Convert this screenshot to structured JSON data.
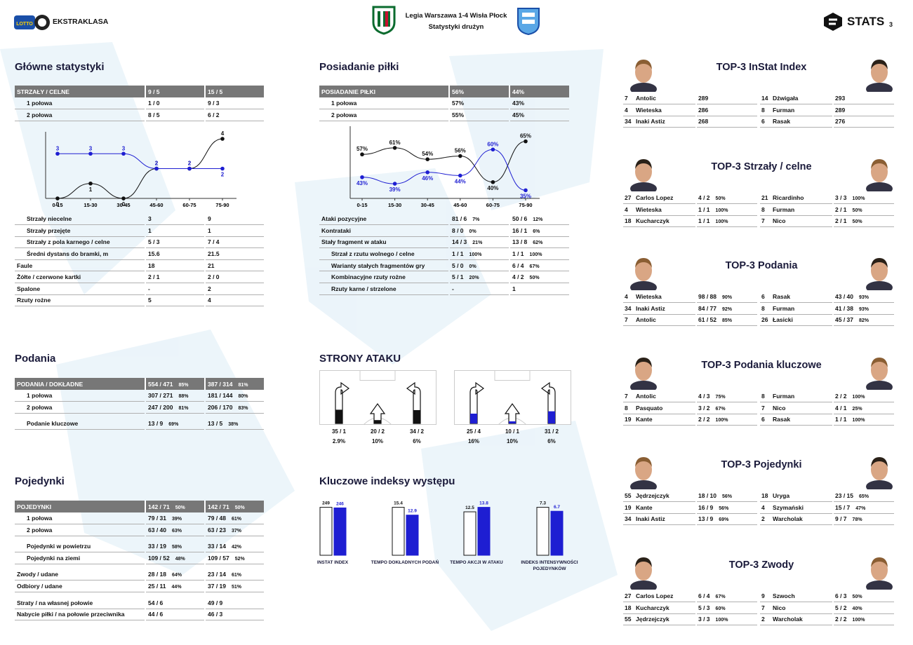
{
  "header": {
    "league": "EKSTRAKLASA",
    "league_brand": "LOTTO",
    "match_title": "Legia Warszawa 1-4 Wisła Płock",
    "match_subtitle": "Statystyki drużyn",
    "stats_brand": "STATS",
    "page_number": "3"
  },
  "colors": {
    "team_a": "#111111",
    "team_b": "#1e1ed2",
    "header_bg": "#777777"
  },
  "main_stats": {
    "title": "Główne statystyki",
    "header": [
      "STRZAŁY / CELNE",
      "9 / 5",
      "15 / 5"
    ],
    "rows": [
      [
        "1 połowa",
        "1 / 0",
        "9 / 3"
      ],
      [
        "2 połowa",
        "8 / 5",
        "6 / 2"
      ]
    ],
    "rows2": [
      [
        "Strzały niecelne",
        "3",
        "9",
        1
      ],
      [
        "Strzały przejęte",
        "1",
        "1",
        1
      ],
      [
        "Strzały z pola karnego / celne",
        "5 / 3",
        "7 / 4",
        1
      ],
      [
        "Średni dystans do bramki, m",
        "15.6",
        "21.5",
        1
      ],
      [
        "Faule",
        "18",
        "21",
        0
      ],
      [
        "Żółte / czerwone kartki",
        "2 / 1",
        "2 / 0",
        0
      ],
      [
        "Spalone",
        "-",
        "2",
        0
      ],
      [
        "Rzuty rożne",
        "5",
        "4",
        0
      ]
    ]
  },
  "chart_data": [
    {
      "type": "line",
      "categories": [
        "0-15",
        "15-30",
        "30-45",
        "45-60",
        "60-75",
        "75-90"
      ],
      "series": [
        {
          "values": [
            0,
            1,
            0,
            2,
            2,
            4
          ],
          "color": "#111111"
        },
        {
          "values": [
            3,
            3,
            3,
            2,
            2,
            2
          ],
          "color": "#1e1ed2"
        }
      ],
      "ylim": [
        0,
        4
      ]
    },
    {
      "type": "line",
      "categories": [
        "0-15",
        "15-30",
        "30-45",
        "45-60",
        "60-75",
        "75-90"
      ],
      "series": [
        {
          "values": [
            57,
            61,
            54,
            56,
            40,
            65
          ],
          "color": "#111111",
          "labels": [
            "57%",
            "61%",
            "54%",
            "56%",
            "40%",
            "65%"
          ]
        },
        {
          "values": [
            43,
            39,
            46,
            44,
            60,
            35
          ],
          "color": "#1e1ed2",
          "labels": [
            "43%",
            "39%",
            "46%",
            "44%",
            "60%",
            "35%"
          ]
        }
      ],
      "ylim": [
        30,
        70
      ]
    },
    {
      "type": "bar",
      "categories": [
        "INSTAT INDEX",
        "TEMPO DOKŁADNYCH PODAŃ",
        "TEMPO AKCJI W ATAKU",
        "INDEKS INTENSYWNOŚCI POJEDYNKÓW"
      ],
      "series": [
        {
          "values": [
            249,
            15.4,
            12.5,
            7.3
          ],
          "labels": [
            "249",
            "15.4",
            "12.5",
            "7.3"
          ]
        },
        {
          "values": [
            246,
            12.9,
            13.8,
            6.7
          ],
          "labels": [
            "246",
            "12.9",
            "13.8",
            "6.7"
          ]
        }
      ]
    }
  ],
  "possession": {
    "title": "Posiadanie piłki",
    "header": [
      "POSIADANIE PIŁKI",
      "56%",
      "44%"
    ],
    "rows": [
      [
        "1 połowa",
        "57%",
        "43%"
      ],
      [
        "2 połowa",
        "55%",
        "45%"
      ]
    ],
    "rows2": [
      [
        "Ataki pozycyjne",
        "81 / 6",
        "7%",
        "50 / 6",
        "12%",
        0
      ],
      [
        "Kontrataki",
        "8 / 0",
        "0%",
        "16 / 1",
        "6%",
        0
      ],
      [
        "Stały fragment w ataku",
        "14 / 3",
        "21%",
        "13 / 8",
        "62%",
        0
      ],
      [
        "Strzał z rzutu wolnego / celne",
        "1 / 1",
        "100%",
        "1 / 1",
        "100%",
        1
      ],
      [
        "Warianty stałych fragmentów gry",
        "5 / 0",
        "0%",
        "6 / 4",
        "67%",
        1
      ],
      [
        "Kombinacyjne rzuty rożne",
        "5 / 1",
        "20%",
        "4 / 2",
        "50%",
        1
      ],
      [
        "Rzuty karne / strzelone",
        "-",
        "",
        "1",
        "",
        1
      ]
    ]
  },
  "passes": {
    "title": "Podania",
    "header": [
      "PODANIA / DOKŁADNE",
      "554 / 471",
      "85%",
      "387 / 314",
      "81%"
    ],
    "rows": [
      [
        "1 połowa",
        "307 / 271",
        "88%",
        "181 / 144",
        "80%"
      ],
      [
        "2 połowa",
        "247 / 200",
        "81%",
        "206 / 170",
        "83%"
      ]
    ],
    "key": [
      "Podanie kluczowe",
      "13 / 9",
      "69%",
      "13 / 5",
      "38%"
    ]
  },
  "attack_sides": {
    "title": "STRONY ATAKU",
    "team_a": [
      [
        "35 / 1",
        "2.9%"
      ],
      [
        "20 / 2",
        "10%"
      ],
      [
        "34 / 2",
        "6%"
      ]
    ],
    "team_b": [
      [
        "25 / 4",
        "16%"
      ],
      [
        "10 / 1",
        "10%"
      ],
      [
        "31 / 2",
        "6%"
      ]
    ],
    "team_a_fill": [
      0.35,
      0.2,
      0.34
    ],
    "team_b_fill": [
      0.25,
      0.1,
      0.31
    ]
  },
  "duels": {
    "title": "Pojedynki",
    "header": [
      "POJEDYNKI",
      "142 / 71",
      "50%",
      "142 / 71",
      "50%"
    ],
    "rows": [
      [
        "1 połowa",
        "79 / 31",
        "39%",
        "79 / 48",
        "61%",
        1,
        0
      ],
      [
        "2 połowa",
        "63 / 40",
        "63%",
        "63 / 23",
        "37%",
        1,
        0
      ],
      [
        "Pojedynki w powietrzu",
        "33 / 19",
        "58%",
        "33 / 14",
        "42%",
        2,
        1
      ],
      [
        "Pojedynki na ziemi",
        "109 / 52",
        "48%",
        "109 / 57",
        "52%",
        2,
        0
      ],
      [
        "Zwody / udane",
        "28 / 18",
        "64%",
        "23 / 14",
        "61%",
        0,
        1
      ],
      [
        "Odbiory / udane",
        "25 / 11",
        "44%",
        "37 / 19",
        "51%",
        0,
        0
      ],
      [
        "Straty / na własnej połowie",
        "54 / 6",
        "",
        "49 / 9",
        "",
        0,
        1
      ],
      [
        "Nabycie piłki / na połowie przeciwnika",
        "44 / 6",
        "",
        "46 / 3",
        "",
        0,
        0
      ]
    ]
  },
  "key_indexes": {
    "title": "Kluczowe indeksy występu"
  },
  "tops": [
    {
      "title": "TOP-3 InStat Index",
      "left": [
        [
          "7",
          "Antolic",
          "289",
          ""
        ],
        [
          "4",
          "Wieteska",
          "286",
          ""
        ],
        [
          "34",
          "Inaki Astiz",
          "268",
          ""
        ]
      ],
      "right": [
        [
          "14",
          "Dźwigała",
          "293",
          ""
        ],
        [
          "8",
          "Furman",
          "289",
          ""
        ],
        [
          "6",
          "Rasak",
          "276",
          ""
        ]
      ]
    },
    {
      "title": "TOP-3 Strzały / celne",
      "left": [
        [
          "27",
          "Carlos Lopez",
          "4 / 2",
          "50%"
        ],
        [
          "4",
          "Wieteska",
          "1 / 1",
          "100%"
        ],
        [
          "18",
          "Kucharczyk",
          "1 / 1",
          "100%"
        ]
      ],
      "right": [
        [
          "21",
          "Ricardinho",
          "3 / 3",
          "100%"
        ],
        [
          "8",
          "Furman",
          "2 / 1",
          "50%"
        ],
        [
          "7",
          "Nico",
          "2 / 1",
          "50%"
        ]
      ]
    },
    {
      "title": "TOP-3 Podania",
      "left": [
        [
          "4",
          "Wieteska",
          "98 / 88",
          "90%"
        ],
        [
          "34",
          "Inaki Astiz",
          "84 / 77",
          "92%"
        ],
        [
          "7",
          "Antolic",
          "61 / 52",
          "85%"
        ]
      ],
      "right": [
        [
          "6",
          "Rasak",
          "43 / 40",
          "93%"
        ],
        [
          "8",
          "Furman",
          "41 / 38",
          "93%"
        ],
        [
          "26",
          "Łasicki",
          "45 / 37",
          "82%"
        ]
      ]
    },
    {
      "title": "TOP-3 Podania kluczowe",
      "left": [
        [
          "7",
          "Antolic",
          "4 / 3",
          "75%"
        ],
        [
          "8",
          "Pasquato",
          "3 / 2",
          "67%"
        ],
        [
          "19",
          "Kante",
          "2 / 2",
          "100%"
        ]
      ],
      "right": [
        [
          "8",
          "Furman",
          "2 / 2",
          "100%"
        ],
        [
          "7",
          "Nico",
          "4 / 1",
          "25%"
        ],
        [
          "6",
          "Rasak",
          "1 / 1",
          "100%"
        ]
      ]
    },
    {
      "title": "TOP-3 Pojedynki",
      "left": [
        [
          "55",
          "Jędrzejczyk",
          "18 / 10",
          "56%"
        ],
        [
          "19",
          "Kante",
          "16 / 9",
          "56%"
        ],
        [
          "34",
          "Inaki Astiz",
          "13 / 9",
          "69%"
        ]
      ],
      "right": [
        [
          "18",
          "Uryga",
          "23 / 15",
          "65%"
        ],
        [
          "4",
          "Szymański",
          "15 / 7",
          "47%"
        ],
        [
          "2",
          "Warcholak",
          "9 / 7",
          "78%"
        ]
      ]
    },
    {
      "title": "TOP-3 Zwody",
      "left": [
        [
          "27",
          "Carlos Lopez",
          "6 / 4",
          "67%"
        ],
        [
          "18",
          "Kucharczyk",
          "5 / 3",
          "60%"
        ],
        [
          "55",
          "Jędrzejczyk",
          "3 / 3",
          "100%"
        ]
      ],
      "right": [
        [
          "9",
          "Szwoch",
          "6 / 3",
          "50%"
        ],
        [
          "7",
          "Nico",
          "5 / 2",
          "40%"
        ],
        [
          "2",
          "Warcholak",
          "2 / 2",
          "100%"
        ]
      ]
    }
  ]
}
